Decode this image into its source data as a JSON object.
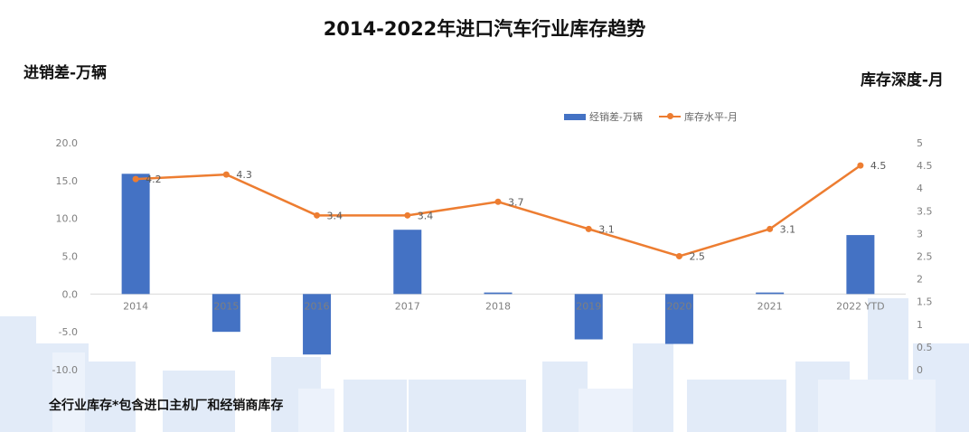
{
  "title": "2014-2022年进口汽车行业库存趋势",
  "left_axis_label": "进销差-万辆",
  "right_axis_label": "库存深度-月",
  "footnote": "全行业库存*包含进口主机厂和经销商库存",
  "legend": {
    "bar_label": "经销差-万辆",
    "line_label": "库存水平-月"
  },
  "colors": {
    "bar": "#4472C4",
    "line": "#ED7D31",
    "background_skyline": "#dde8f7"
  },
  "chart_data": {
    "type": "bar+line",
    "categories": [
      "2014",
      "2015",
      "2016",
      "2017",
      "2018",
      "2019",
      "2020",
      "2021",
      "2022 YTD"
    ],
    "series": [
      {
        "name": "经销差-万辆",
        "type": "bar",
        "axis": "left",
        "values": [
          15.9,
          -5.0,
          -8.0,
          8.5,
          0.2,
          -6.0,
          -6.6,
          0.2,
          7.8
        ]
      },
      {
        "name": "库存水平-月",
        "type": "line",
        "axis": "right",
        "values": [
          4.2,
          4.3,
          3.4,
          3.4,
          3.7,
          3.1,
          2.5,
          3.1,
          4.5
        ],
        "data_labels": [
          "4.2",
          "4.3",
          "3.4",
          "3.4",
          "3.7",
          "3.1",
          "2.5",
          "3.1",
          "4.5"
        ]
      }
    ],
    "left_axis": {
      "min": -10,
      "max": 20,
      "ticks": [
        "-10.0",
        "-5.0",
        "0.0",
        "5.0",
        "10.0",
        "15.0",
        "20.0"
      ],
      "tick_values": [
        -10,
        -5,
        0,
        5,
        10,
        15,
        20
      ]
    },
    "right_axis": {
      "min": 0,
      "max": 5,
      "ticks": [
        "0",
        "0.5",
        "1",
        "1.5",
        "2",
        "2.5",
        "3",
        "3.5",
        "4",
        "4.5",
        "5"
      ],
      "tick_values": [
        0,
        0.5,
        1,
        1.5,
        2,
        2.5,
        3,
        3.5,
        4,
        4.5,
        5
      ]
    },
    "legend_position": "top-right",
    "grid": false
  }
}
